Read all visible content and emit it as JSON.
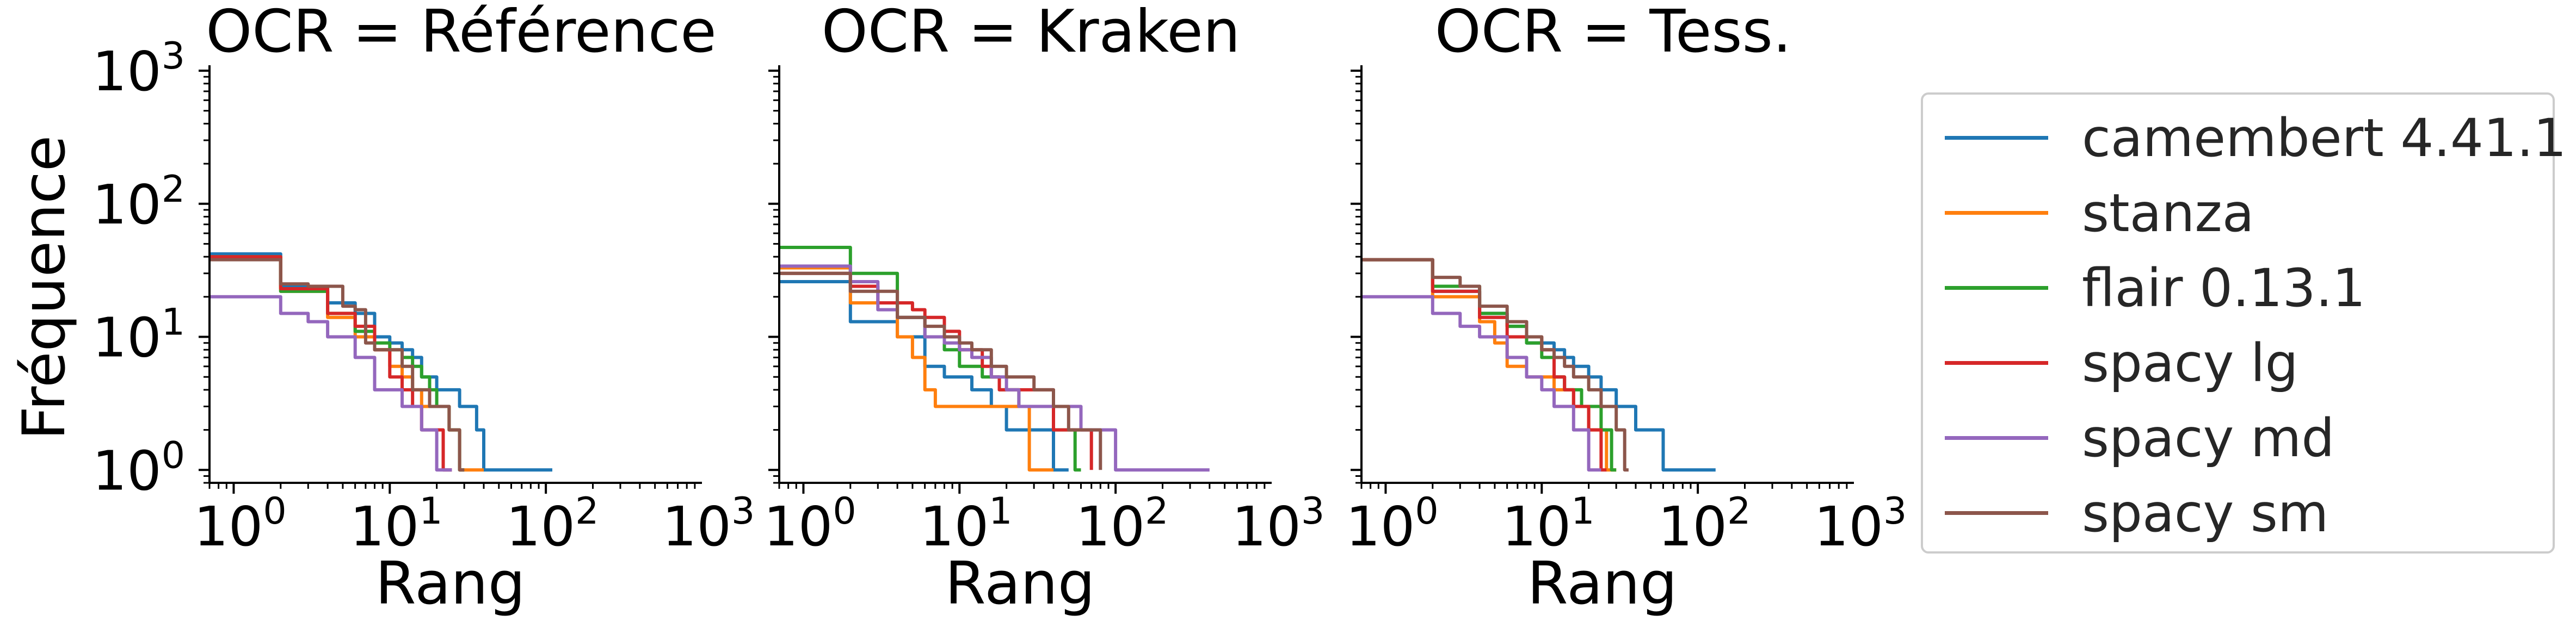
{
  "chart_data": {
    "type": "line",
    "xscale": "log",
    "yscale": "log",
    "xlim": [
      0.7,
      1000
    ],
    "ylim": [
      0.8,
      1000
    ],
    "ylabel": "Fréquence",
    "xlabel": "Rang",
    "x_ticks": [
      "10^0",
      "10^1",
      "10^2",
      "10^3"
    ],
    "y_ticks": [
      "10^0",
      "10^1",
      "10^2",
      "10^3"
    ],
    "legend_position": "right",
    "series_styles": [
      {
        "name": "camembert 4.41.1",
        "color": "#1f77b4"
      },
      {
        "name": "stanza",
        "color": "#ff7f0e"
      },
      {
        "name": "flair 0.13.1",
        "color": "#2ca02c"
      },
      {
        "name": "spacy lg",
        "color": "#d62728"
      },
      {
        "name": "spacy md",
        "color": "#9467bd"
      },
      {
        "name": "spacy sm",
        "color": "#8c564b"
      }
    ],
    "panels": [
      {
        "title": "OCR = Référence",
        "series": [
          {
            "name": "camembert 4.41.1",
            "x": [
              0.7,
              1,
              2,
              4,
              6,
              8,
              10,
              12,
              14,
              16,
              18,
              20,
              24,
              28,
              32,
              36,
              40,
              60,
              80,
              110
            ],
            "y": [
              42,
              42,
              24,
              18,
              15,
              10,
              9,
              8,
              7,
              5,
              5,
              4,
              4,
              3,
              3,
              2,
              1,
              1,
              1,
              1
            ]
          },
          {
            "name": "stanza",
            "x": [
              0.7,
              1,
              2,
              4,
              6,
              8,
              10,
              12,
              14,
              16,
              18,
              20,
              24,
              26,
              28,
              30,
              40
            ],
            "y": [
              40,
              40,
              22,
              14,
              10,
              8,
              6,
              5,
              4,
              3,
              3,
              3,
              2,
              2,
              1,
              1,
              1
            ]
          },
          {
            "name": "flair 0.13.1",
            "x": [
              0.7,
              1,
              2,
              4,
              6,
              8,
              10,
              12,
              14,
              16,
              18,
              20,
              24,
              26,
              28,
              30
            ],
            "y": [
              40,
              40,
              22,
              15,
              11,
              9,
              8,
              7,
              6,
              5,
              4,
              3,
              2,
              2,
              1,
              1
            ]
          },
          {
            "name": "spacy lg",
            "x": [
              0.7,
              1,
              2,
              4,
              6,
              8,
              10,
              12,
              14,
              16,
              18,
              20,
              22,
              25
            ],
            "y": [
              40,
              40,
              23,
              15,
              12,
              8,
              5,
              4,
              3,
              2,
              2,
              2,
              1,
              1
            ]
          },
          {
            "name": "spacy md",
            "x": [
              0.7,
              1,
              2,
              3,
              4,
              6,
              8,
              10,
              12,
              14,
              16,
              18,
              20,
              22,
              25
            ],
            "y": [
              20,
              20,
              15,
              13,
              10,
              7,
              4,
              4,
              3,
              3,
              2,
              2,
              1,
              1,
              1
            ]
          },
          {
            "name": "spacy sm",
            "x": [
              0.7,
              1,
              2,
              3,
              5,
              6,
              7,
              8,
              10,
              12,
              14,
              16,
              18,
              20,
              24,
              28,
              30
            ],
            "y": [
              38,
              38,
              25,
              24,
              17,
              16,
              9,
              8,
              8,
              6,
              4,
              4,
              3,
              3,
              2,
              1,
              1
            ]
          }
        ]
      },
      {
        "title": "OCR = Kraken",
        "series": [
          {
            "name": "camembert 4.41.1",
            "x": [
              0.7,
              1,
              2,
              4,
              6,
              8,
              10,
              12,
              14,
              16,
              18,
              20,
              24,
              28,
              32,
              36,
              40,
              50
            ],
            "y": [
              26,
              26,
              13,
              10,
              6,
              5,
              5,
              4,
              4,
              3,
              3,
              2,
              2,
              2,
              2,
              2,
              1,
              1
            ]
          },
          {
            "name": "stanza",
            "x": [
              0.7,
              1,
              2,
              4,
              5,
              6,
              7,
              8,
              10,
              12,
              14,
              16,
              20,
              24,
              28,
              30,
              40
            ],
            "y": [
              33,
              33,
              18,
              10,
              7,
              4,
              3,
              3,
              3,
              3,
              3,
              3,
              3,
              3,
              1,
              1,
              1
            ]
          },
          {
            "name": "flair 0.13.1",
            "x": [
              0.7,
              1,
              2,
              4,
              6,
              8,
              10,
              14,
              18,
              24,
              30,
              40,
              50,
              55,
              60
            ],
            "y": [
              47,
              47,
              30,
              14,
              10,
              8,
              6,
              5,
              4,
              3,
              3,
              2,
              2,
              1,
              1
            ]
          },
          {
            "name": "spacy lg",
            "x": [
              0.7,
              1,
              2,
              3,
              5,
              6,
              8,
              10,
              12,
              14,
              16,
              18,
              20,
              30,
              40,
              60,
              70
            ],
            "y": [
              30,
              30,
              24,
              18,
              16,
              14,
              11,
              8,
              8,
              6,
              5,
              4,
              4,
              4,
              2,
              2,
              1
            ]
          },
          {
            "name": "spacy md",
            "x": [
              0.7,
              1,
              2,
              3,
              4,
              6,
              8,
              10,
              12,
              16,
              20,
              24,
              30,
              40,
              60,
              80,
              100,
              200,
              300,
              400
            ],
            "y": [
              34,
              34,
              26,
              16,
              14,
              10,
              9,
              8,
              7,
              5,
              4,
              3,
              3,
              3,
              2,
              2,
              1,
              1,
              1,
              1
            ]
          },
          {
            "name": "spacy sm",
            "x": [
              0.7,
              1,
              2,
              4,
              6,
              8,
              10,
              12,
              16,
              20,
              30,
              40,
              50,
              60,
              70,
              80
            ],
            "y": [
              30,
              30,
              22,
              14,
              12,
              10,
              9,
              8,
              6,
              5,
              4,
              3,
              2,
              2,
              2,
              1
            ]
          }
        ]
      },
      {
        "title": "OCR = Tess.",
        "series": [
          {
            "name": "camembert 4.41.1",
            "x": [
              0.7,
              1,
              2,
              4,
              6,
              8,
              10,
              12,
              14,
              16,
              20,
              24,
              30,
              40,
              50,
              60,
              100,
              130
            ],
            "y": [
              38,
              38,
              22,
              15,
              12,
              9,
              9,
              8,
              7,
              6,
              5,
              4,
              3,
              2,
              2,
              1,
              1,
              1
            ]
          },
          {
            "name": "stanza",
            "x": [
              0.7,
              1,
              2,
              4,
              5,
              6,
              8,
              10,
              12,
              14,
              16,
              18,
              20,
              24,
              26,
              28,
              30
            ],
            "y": [
              38,
              38,
              20,
              13,
              9,
              6,
              5,
              5,
              4,
              4,
              3,
              3,
              2,
              2,
              1,
              1,
              1
            ]
          },
          {
            "name": "flair 0.13.1",
            "x": [
              0.7,
              1,
              2,
              4,
              6,
              8,
              10,
              12,
              14,
              16,
              18,
              20,
              24,
              28,
              30
            ],
            "y": [
              38,
              38,
              24,
              15,
              12,
              9,
              7,
              5,
              4,
              4,
              3,
              3,
              2,
              1,
              1
            ]
          },
          {
            "name": "spacy lg",
            "x": [
              0.7,
              1,
              2,
              4,
              6,
              8,
              10,
              12,
              14,
              16,
              18,
              20,
              22,
              24,
              26
            ],
            "y": [
              38,
              38,
              22,
              14,
              10,
              10,
              8,
              5,
              4,
              3,
              3,
              2,
              2,
              1,
              1
            ]
          },
          {
            "name": "spacy md",
            "x": [
              0.7,
              1,
              2,
              3,
              4,
              6,
              8,
              10,
              12,
              14,
              16,
              18,
              20,
              22,
              24
            ],
            "y": [
              20,
              20,
              15,
              12,
              10,
              7,
              5,
              4,
              3,
              3,
              2,
              2,
              1,
              1,
              1
            ]
          },
          {
            "name": "spacy sm",
            "x": [
              0.7,
              1,
              2,
              3,
              4,
              6,
              8,
              10,
              12,
              14,
              16,
              20,
              24,
              28,
              30,
              34,
              36
            ],
            "y": [
              38,
              38,
              28,
              24,
              17,
              13,
              10,
              8,
              7,
              6,
              5,
              4,
              3,
              3,
              2,
              1,
              1
            ]
          }
        ]
      }
    ]
  }
}
